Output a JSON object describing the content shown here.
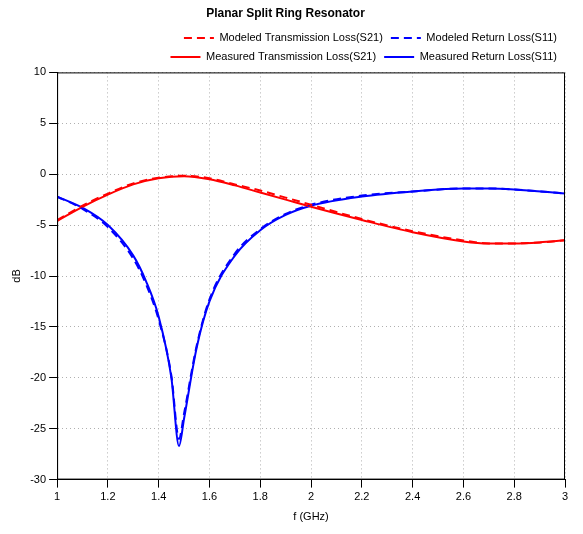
{
  "chart_data": {
    "type": "line",
    "title": "Planar Split Ring Resonator",
    "x_label": "f (GHz)",
    "y_label": "dB",
    "xlim": [
      1,
      3
    ],
    "xticks": [
      1,
      1.2,
      1.4,
      1.6,
      1.8,
      2,
      2.2,
      2.4,
      2.6,
      2.8,
      3
    ],
    "ylim": [
      -30,
      10
    ],
    "yticks": [
      -30,
      -25,
      -20,
      -15,
      -10,
      -5,
      0,
      5,
      10
    ],
    "grid": true,
    "legend": "top-right",
    "series": [
      {
        "name": "Modeled Transmission Loss(S21)",
        "color": "#ff0000",
        "line_style": "dashed",
        "x": [
          1.0,
          1.1,
          1.2,
          1.3,
          1.4,
          1.5,
          1.6,
          1.7,
          1.8,
          1.9,
          2.0,
          2.2,
          2.4,
          2.6,
          2.7,
          2.8,
          2.9,
          3.0
        ],
        "values": [
          -4.5,
          -3.1,
          -1.9,
          -0.9,
          -0.35,
          -0.15,
          -0.4,
          -1.0,
          -1.6,
          -2.3,
          -3.0,
          -4.4,
          -5.6,
          -6.5,
          -6.8,
          -6.8,
          -6.7,
          -6.5
        ]
      },
      {
        "name": "Modeled Return Loss(S11)",
        "color": "#0000ff",
        "line_style": "dashed",
        "x": [
          1.0,
          1.1,
          1.2,
          1.3,
          1.35,
          1.4,
          1.45,
          1.48,
          1.5,
          1.55,
          1.6,
          1.7,
          1.8,
          1.9,
          2.0,
          2.2,
          2.4,
          2.6,
          2.7,
          2.8,
          3.0
        ],
        "values": [
          -2.2,
          -3.4,
          -5.2,
          -8.3,
          -10.8,
          -14.3,
          -19.8,
          -26.0,
          -23.5,
          -16.8,
          -12.3,
          -7.8,
          -5.4,
          -3.9,
          -3.0,
          -2.1,
          -1.7,
          -1.4,
          -1.4,
          -1.5,
          -1.9
        ]
      },
      {
        "name": "Measured Transmission Loss(S21)",
        "color": "#ff0000",
        "line_style": "solid",
        "x": [
          1.0,
          1.1,
          1.2,
          1.3,
          1.4,
          1.5,
          1.6,
          1.7,
          1.8,
          1.9,
          2.0,
          2.2,
          2.4,
          2.6,
          2.7,
          2.8,
          2.9,
          3.0
        ],
        "values": [
          -4.6,
          -3.2,
          -2.0,
          -1.0,
          -0.4,
          -0.2,
          -0.5,
          -1.1,
          -1.8,
          -2.5,
          -3.2,
          -4.5,
          -5.7,
          -6.6,
          -6.8,
          -6.8,
          -6.7,
          -6.5
        ]
      },
      {
        "name": "Measured Return Loss(S11)",
        "color": "#0000ff",
        "line_style": "solid",
        "x": [
          1.0,
          1.1,
          1.2,
          1.3,
          1.35,
          1.4,
          1.45,
          1.48,
          1.5,
          1.55,
          1.6,
          1.7,
          1.8,
          1.9,
          2.0,
          2.2,
          2.4,
          2.6,
          2.7,
          2.8,
          3.0
        ],
        "values": [
          -2.2,
          -3.3,
          -5.0,
          -8.0,
          -10.5,
          -14.0,
          -20.0,
          -26.7,
          -24.0,
          -17.0,
          -12.5,
          -8.0,
          -5.5,
          -4.0,
          -3.1,
          -2.2,
          -1.7,
          -1.4,
          -1.4,
          -1.5,
          -1.9
        ]
      }
    ]
  }
}
